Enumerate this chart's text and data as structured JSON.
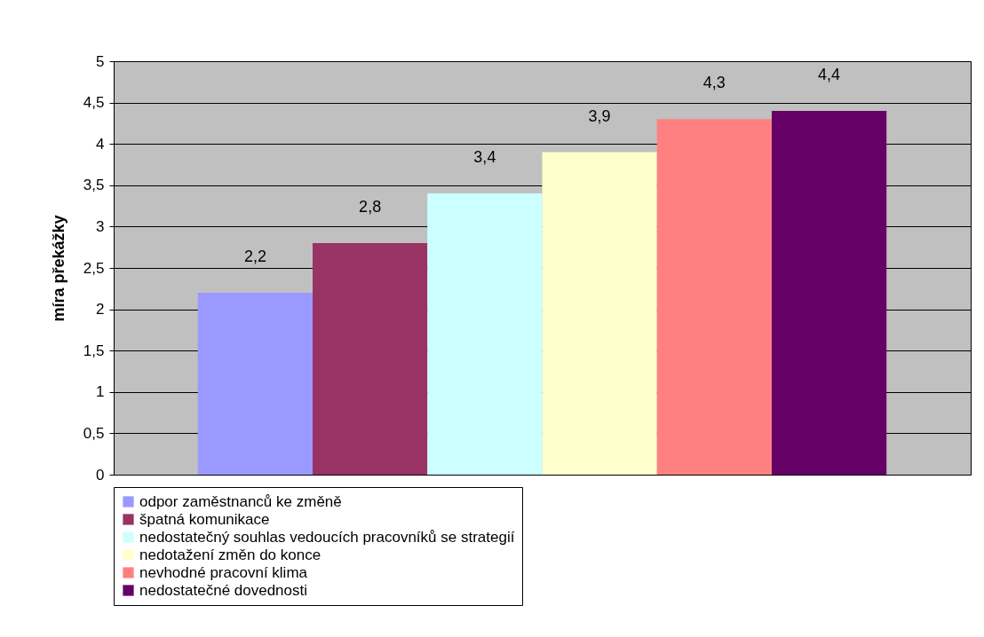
{
  "chart_data": {
    "type": "bar",
    "ylabel": "míra překážky",
    "categories": [
      null
    ],
    "series": [
      {
        "name": "odpor zaměstnanců ke změně",
        "color": "#9999ff",
        "values": [
          2.2
        ],
        "value_labels": [
          "2,2"
        ]
      },
      {
        "name": "špatná komunikace",
        "color": "#993366",
        "values": [
          2.8
        ],
        "value_labels": [
          "2,8"
        ]
      },
      {
        "name": "nedostatečný souhlas vedoucích pracovníků se strategií",
        "color": "#ccffff",
        "values": [
          3.4
        ],
        "value_labels": [
          "3,4"
        ]
      },
      {
        "name": "nedotažení změn do konce",
        "color": "#ffffcc",
        "values": [
          3.9
        ],
        "value_labels": [
          "3,9"
        ]
      },
      {
        "name": "nevhodné pracovní klima",
        "color": "#ff8080",
        "values": [
          4.3
        ],
        "value_labels": [
          "4,3"
        ]
      },
      {
        "name": "nedostatečné dovednosti",
        "color": "#660066",
        "values": [
          4.4
        ],
        "value_labels": [
          "4,4"
        ]
      }
    ],
    "ylim": [
      0,
      5
    ],
    "yticks": [
      0,
      {
        "value": 0.5,
        "label": "0,5"
      },
      1,
      {
        "value": 1.5,
        "label": "1,5"
      },
      2,
      {
        "value": 2.5,
        "label": "2,5"
      },
      3,
      {
        "value": 3.5,
        "label": "3,5"
      },
      4,
      {
        "value": 4.5,
        "label": "4,5"
      },
      5
    ],
    "grid": "y",
    "legend": "bottom"
  }
}
